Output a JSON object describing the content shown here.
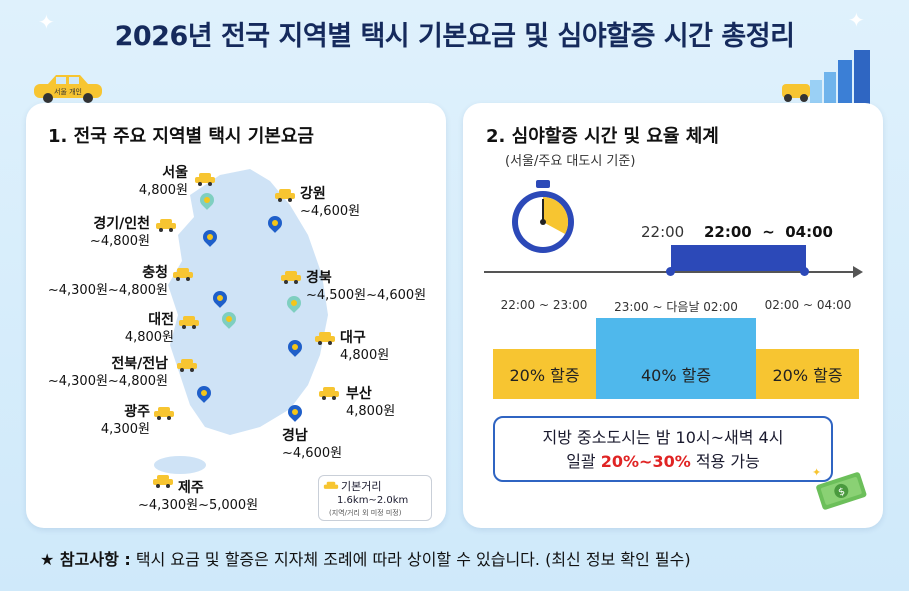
{
  "title": "2026년 전국 지역별 택시 기본요금 및 심야할증 시간 총정리",
  "taxi_sign": "서울 개인",
  "section1": {
    "title": "1. 전국 주요 지역별 택시 기본요금",
    "regions": [
      {
        "name": "서울",
        "fare": "4,800원"
      },
      {
        "name": "강원",
        "fare": "~4,600원"
      },
      {
        "name": "경기/인천",
        "fare": "~4,800원"
      },
      {
        "name": "충청",
        "fare": "~4,300원~4,800원"
      },
      {
        "name": "경북",
        "fare": "~4,500원~4,600원"
      },
      {
        "name": "대전",
        "fare": "4,800원"
      },
      {
        "name": "대구",
        "fare": "4,800원"
      },
      {
        "name": "전북/전남",
        "fare": "~4,300원~4,800원"
      },
      {
        "name": "부산",
        "fare": "4,800원"
      },
      {
        "name": "광주",
        "fare": "4,300원"
      },
      {
        "name": "경남",
        "fare": "~4,600원"
      },
      {
        "name": "제주",
        "fare": "~4,300원~5,000원"
      }
    ],
    "legend": {
      "title": "기본거리",
      "distance": "1.6km~2.0km",
      "note": "(지역/거리 외 미정 미정)"
    }
  },
  "section2": {
    "title": "2. 심야할증 시간 및 요율 체계",
    "subtitle": "(서울/주요 대도시 기준)",
    "start_time": "22:00",
    "range_label": "22:00  ~  04:00",
    "segments": [
      {
        "time": "22:00 ~ 23:00",
        "label": "20% 할증",
        "color": "#f7c531"
      },
      {
        "time": "23:00 ~ 다음날 02:00",
        "label": "40% 할증",
        "color": "#4fb8ec"
      },
      {
        "time": "02:00 ~ 04:00",
        "label": "20% 할증",
        "color": "#f7c531"
      }
    ],
    "note_line1": "지방 중소도시는 밤 10시~새벽 4시",
    "note_prefix": "일괄 ",
    "note_highlight": "20%~30%",
    "note_suffix": " 적용 가능"
  },
  "footer": {
    "label": "★ 참고사항 :",
    "text": " 택시 요금 및 할증은 지자체 조례에 따라 상이할 수 있습니다. (최신 정보 확인 필수)"
  },
  "colors": {
    "title": "#152a5c",
    "pin": "#1f5fc9",
    "night_bar": "#2c49b8",
    "highlight": "#e02424"
  }
}
